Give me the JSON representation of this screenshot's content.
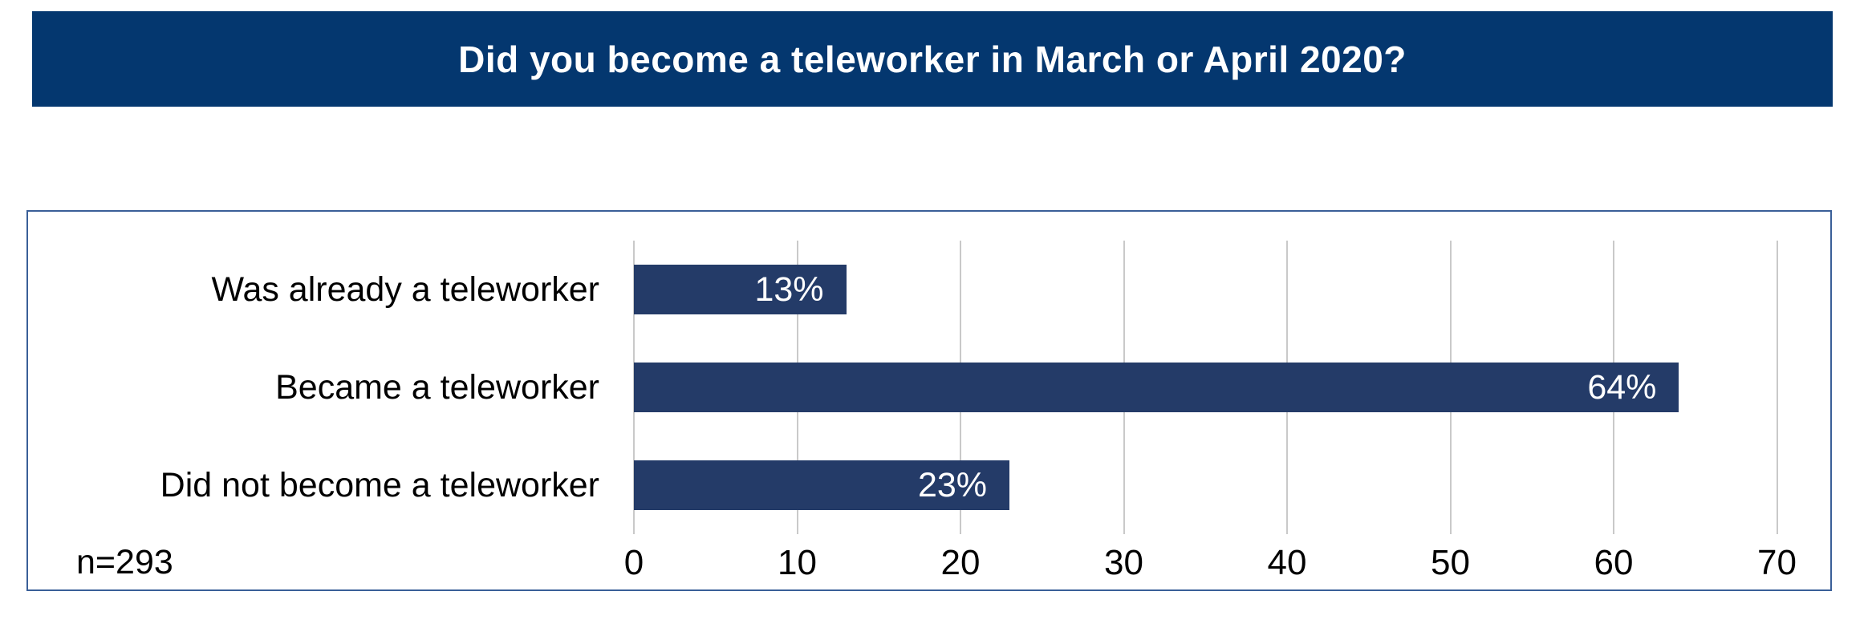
{
  "header": {
    "title": "Did you become a teleworker in March or April 2020?",
    "background": "#04376F",
    "text_color": "#FFFFFF"
  },
  "chart_data": {
    "type": "bar",
    "orientation": "horizontal",
    "title": "Did you become a teleworker in March or April 2020?",
    "categories": [
      "Was already a teleworker",
      "Became a teleworker",
      "Did not become a teleworker"
    ],
    "values": [
      13,
      64,
      23
    ],
    "value_labels": [
      "13%",
      "64%",
      "23%"
    ],
    "x_ticks": [
      0,
      10,
      20,
      30,
      40,
      50,
      60,
      70
    ],
    "xlim": [
      0,
      73
    ],
    "grid": "vertical-only",
    "legend": "none",
    "note": "n=293",
    "colors": {
      "bar": "#243B68",
      "bar_label": "#FFFFFF",
      "gridline": "#C9C9C9",
      "panel_border": "#3A5F98",
      "category_label": "#000000",
      "axis_label": "#000000"
    }
  }
}
